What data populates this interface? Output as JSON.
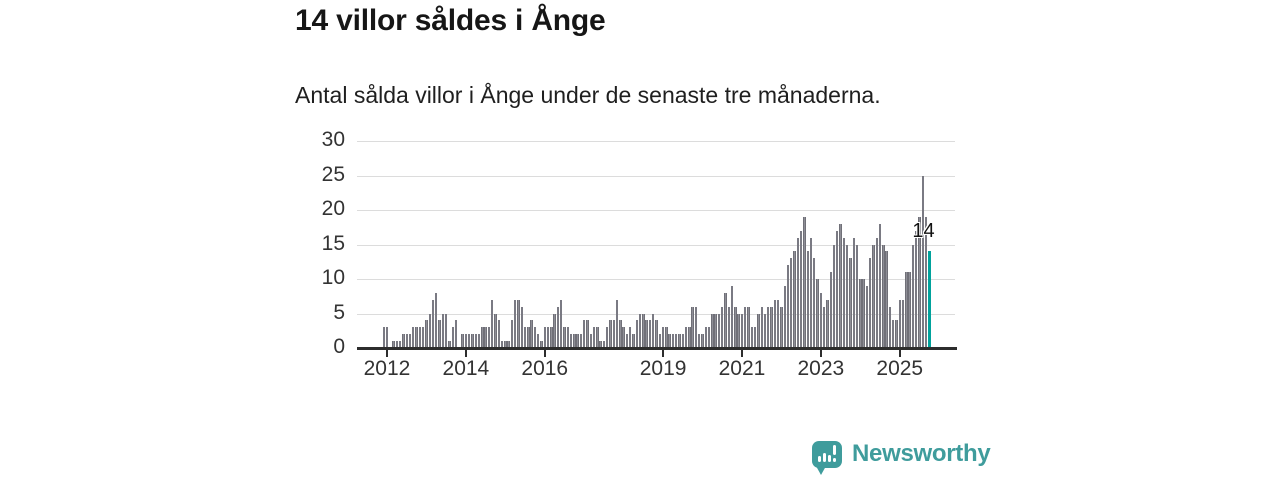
{
  "header": {
    "title": "14 villor såldes i Ånge",
    "subtitle": "Antal sålda villor i Ånge under de senaste tre månaderna."
  },
  "chart_data": {
    "type": "bar",
    "title": "14 villor såldes i Ånge",
    "subtitle": "Antal sålda villor i Ånge under de senaste tre månaderna.",
    "frequency": "monthly",
    "x_start": "2011-12",
    "x_end": "2025-10",
    "xtick_labels": [
      "2012",
      "2014",
      "2016",
      "2019",
      "2021",
      "2023",
      "2025"
    ],
    "yticks": [
      0,
      5,
      10,
      15,
      20,
      25,
      30
    ],
    "ylim": [
      0,
      30
    ],
    "grid": true,
    "legend_position": "none",
    "values": [
      3,
      3,
      0,
      1,
      1,
      1,
      2,
      2,
      2,
      3,
      3,
      3,
      3,
      4,
      5,
      7,
      8,
      4,
      5,
      5,
      1,
      3,
      4,
      0,
      2,
      2,
      2,
      2,
      2,
      2,
      3,
      3,
      3,
      7,
      5,
      4,
      1,
      1,
      1,
      4,
      7,
      7,
      6,
      3,
      3,
      4,
      3,
      2,
      1,
      3,
      3,
      3,
      5,
      6,
      7,
      3,
      3,
      2,
      2,
      2,
      2,
      4,
      4,
      2,
      3,
      3,
      1,
      1,
      3,
      4,
      4,
      7,
      4,
      3,
      2,
      3,
      2,
      4,
      5,
      5,
      4,
      4,
      5,
      4,
      2,
      3,
      3,
      2,
      2,
      2,
      2,
      2,
      3,
      3,
      6,
      6,
      2,
      2,
      3,
      3,
      5,
      5,
      5,
      6,
      8,
      6,
      9,
      6,
      5,
      5,
      6,
      6,
      3,
      3,
      5,
      6,
      5,
      6,
      6,
      7,
      7,
      6,
      9,
      12,
      13,
      14,
      16,
      17,
      19,
      14,
      16,
      13,
      10,
      8,
      6,
      7,
      11,
      15,
      17,
      18,
      16,
      15,
      13,
      16,
      15,
      10,
      10,
      9,
      13,
      15,
      16,
      18,
      15,
      14,
      6,
      4,
      4,
      7,
      7,
      11,
      11,
      15,
      17,
      19,
      25,
      19,
      14
    ],
    "highlight_last": {
      "value": 14,
      "label": "14"
    }
  },
  "colors": {
    "bar": "#6f6f78",
    "bar_edge": "#5a5a63",
    "highlight": "#00a29c",
    "grid": "#dcdcdc",
    "axis": "#2d2d2d",
    "title_text": "#161616",
    "axis_text": "#333333",
    "brand": "#3f9c9c"
  },
  "branding": {
    "name": "Newsworthy",
    "icon": "bar-chart-speech-bubble-icon"
  }
}
